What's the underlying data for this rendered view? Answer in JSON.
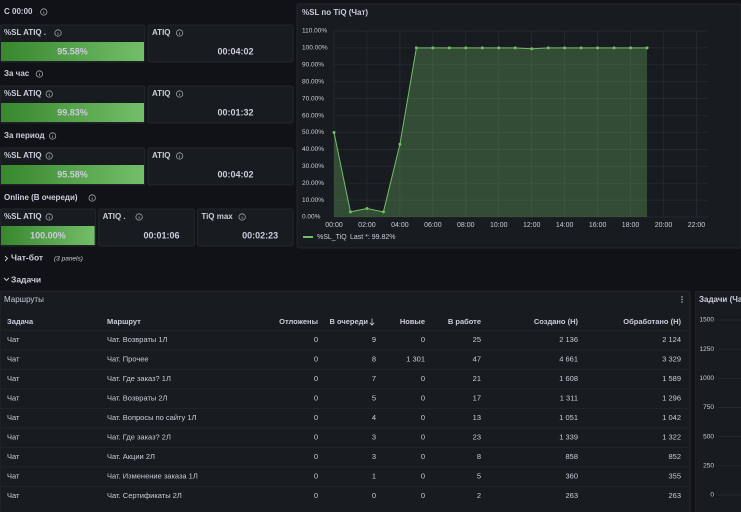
{
  "groups": [
    {
      "title": "С 00:00",
      "panels": [
        {
          "title": "%SL ATIQ .",
          "value": "95.58%"
        },
        {
          "title": "ATIQ",
          "value": "00:04:02"
        }
      ]
    },
    {
      "title": "За час",
      "panels": [
        {
          "title": "%SL ATIQ",
          "value": "99.83%"
        },
        {
          "title": "ATIQ",
          "value": "00:01:32"
        }
      ]
    },
    {
      "title": "За период",
      "panels": [
        {
          "title": "%SL ATIQ",
          "value": "95.58%"
        },
        {
          "title": "ATIQ",
          "value": "00:04:02"
        }
      ]
    },
    {
      "title": "Online (В очереди)",
      "panels": [
        {
          "title": "%SL ATIQ",
          "value": "100.00%"
        },
        {
          "title": "ATIQ .",
          "value": "00:01:06"
        },
        {
          "title": "TiQ max",
          "value": "00:02:23"
        }
      ]
    }
  ],
  "chart": {
    "type": "line",
    "title": "%SL по TiQ (Чат)",
    "x": [
      0,
      1,
      2,
      3,
      4,
      5,
      6,
      7,
      8,
      9,
      10,
      11,
      12,
      13,
      14,
      15,
      16,
      17,
      18,
      19
    ],
    "xlim": [
      0,
      22.7
    ],
    "xticks": [
      {
        "value": 0,
        "label": "00:00"
      },
      {
        "value": 2,
        "label": "02:00"
      },
      {
        "value": 4,
        "label": "04:00"
      },
      {
        "value": 6,
        "label": "06:00"
      },
      {
        "value": 8,
        "label": "08:00"
      },
      {
        "value": 10,
        "label": "10:00"
      },
      {
        "value": 12,
        "label": "12:00"
      },
      {
        "value": 14,
        "label": "14:00"
      },
      {
        "value": 16,
        "label": "16:00"
      },
      {
        "value": 18,
        "label": "18:00"
      },
      {
        "value": 20,
        "label": "20:00"
      },
      {
        "value": 22,
        "label": "22:00"
      }
    ],
    "ylim": [
      0,
      110
    ],
    "yticks": [
      {
        "value": 0,
        "label": "0.00%"
      },
      {
        "value": 10,
        "label": "10.00%"
      },
      {
        "value": 20,
        "label": "20.00%"
      },
      {
        "value": 30,
        "label": "30.00%"
      },
      {
        "value": 40,
        "label": "40.00%"
      },
      {
        "value": 50,
        "label": "50.00%"
      },
      {
        "value": 60,
        "label": "60.00%"
      },
      {
        "value": 70,
        "label": "70.00%"
      },
      {
        "value": 80,
        "label": "80.00%"
      },
      {
        "value": 90,
        "label": "90.00%"
      },
      {
        "value": 100,
        "label": "100.00%"
      },
      {
        "value": 110,
        "label": "110.00%"
      }
    ],
    "grid": true,
    "series": [
      {
        "name": "%SL_TiQ",
        "color": "#73bf69",
        "values": [
          50,
          3,
          5,
          3,
          43,
          100,
          100,
          100,
          100,
          100,
          100,
          100,
          99.5,
          100,
          100,
          100,
          100,
          100,
          100,
          100
        ]
      }
    ],
    "legend_value": "Last *: 99.82%"
  },
  "rows": [
    {
      "title": "Чат-бот",
      "note": "(3 panels)"
    },
    {
      "title": "Задачи"
    }
  ],
  "table": {
    "title": "Маршруты",
    "columns": [
      "Задача",
      "Маршрут",
      "Отложены",
      "В очереди",
      "Новые",
      "В работе",
      "Создано (Н)",
      "Обработано (Н)"
    ],
    "rows": [
      [
        "Чат",
        "Чат. Возвраты 1Л",
        "0",
        "9",
        "0",
        "25",
        "2 136",
        "2 124"
      ],
      [
        "Чат",
        "Чат. Прочее",
        "0",
        "8",
        "1 301",
        "47",
        "4 661",
        "3 329"
      ],
      [
        "Чат",
        "Чат. Где заказ? 1Л",
        "0",
        "7",
        "0",
        "21",
        "1 608",
        "1 589"
      ],
      [
        "Чат",
        "Чат. Возвраты 2Л",
        "0",
        "5",
        "0",
        "17",
        "1 311",
        "1 296"
      ],
      [
        "Чат",
        "Чат. Вопросы по сайту 1Л",
        "0",
        "4",
        "0",
        "13",
        "1 051",
        "1 042"
      ],
      [
        "Чат",
        "Чат. Где заказ? 2Л",
        "0",
        "3",
        "0",
        "23",
        "1 339",
        "1 322"
      ],
      [
        "Чат",
        "Чат. Акции 2Л",
        "0",
        "3",
        "0",
        "8",
        "858",
        "852"
      ],
      [
        "Чат",
        "Чат. Изменение заказа 1Л",
        "0",
        "1",
        "0",
        "5",
        "360",
        "355"
      ],
      [
        "Чат",
        "Чат. Сертификаты 2Л",
        "0",
        "0",
        "0",
        "2",
        "263",
        "263"
      ]
    ]
  },
  "side_panel": {
    "title": "Задачи (Ча",
    "ylim": [
      0,
      1500
    ],
    "yticks": [
      0,
      250,
      500,
      750,
      1000,
      1250,
      1500
    ]
  }
}
